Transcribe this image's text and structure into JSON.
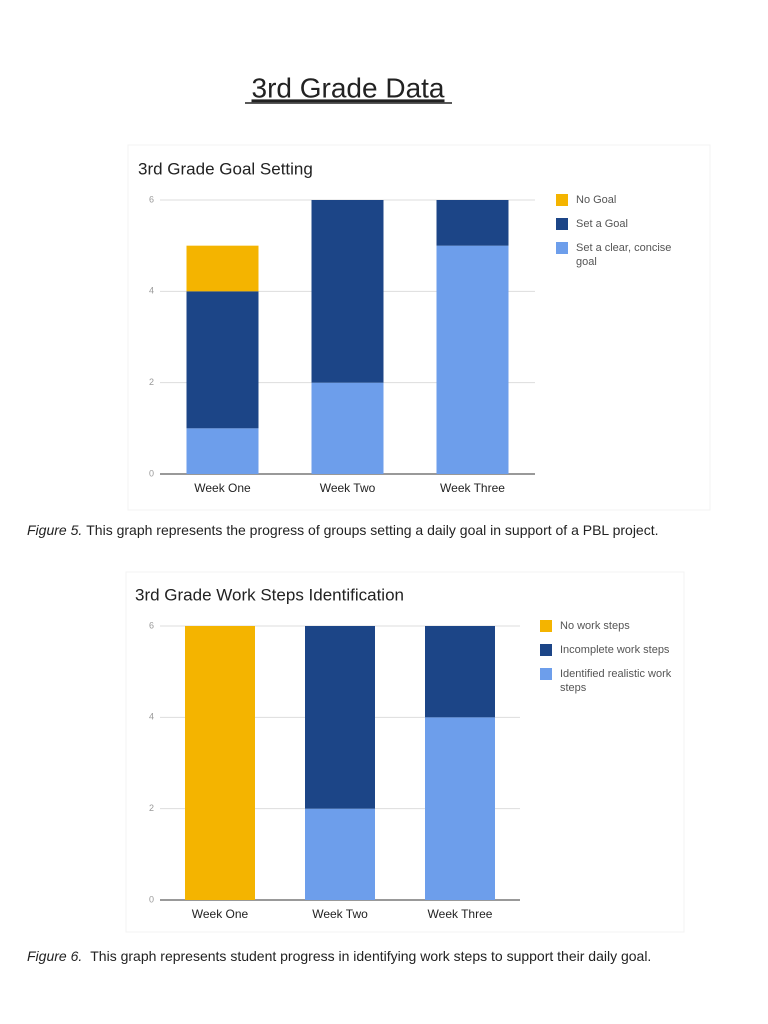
{
  "title": "3rd Grade Data",
  "chart_data": [
    {
      "type": "stacked-bar",
      "title": "3rd Grade Goal Setting",
      "categories": [
        "Week One",
        "Week Two",
        "Week Three"
      ],
      "series": [
        {
          "name": "No Goal",
          "color": "#f4b400",
          "values": [
            1,
            0,
            0
          ]
        },
        {
          "name": "Set a Goal",
          "color": "#1c4587",
          "values": [
            3,
            4,
            1
          ]
        },
        {
          "name": "Set a clear, concise goal",
          "color": "#6d9eeb",
          "values": [
            1,
            2,
            5
          ]
        }
      ],
      "ylim": [
        0,
        6
      ],
      "yticks": [
        0,
        2,
        4,
        6
      ],
      "grid": true,
      "legend": "right"
    },
    {
      "type": "stacked-bar",
      "title": "3rd Grade Work Steps Identification",
      "categories": [
        "Week One",
        "Week Two",
        "Week Three"
      ],
      "series": [
        {
          "name": "No work steps",
          "color": "#f4b400",
          "values": [
            6,
            0,
            0
          ]
        },
        {
          "name": "Incomplete work steps",
          "color": "#1c4587",
          "values": [
            0,
            4,
            2
          ]
        },
        {
          "name": "Identified realistic work steps",
          "color": "#6d9eeb",
          "values": [
            0,
            2,
            4
          ]
        }
      ],
      "ylim": [
        0,
        6
      ],
      "yticks": [
        0,
        2,
        4,
        6
      ],
      "grid": true,
      "legend": "right"
    }
  ],
  "captions": [
    {
      "label": "Figure 5.",
      "text": "This graph represents the progress of groups setting a daily goal in support of a PBL project."
    },
    {
      "label": "Figure 6.",
      "text": "This graph represents student progress in identifying work steps to support their daily goal."
    }
  ]
}
